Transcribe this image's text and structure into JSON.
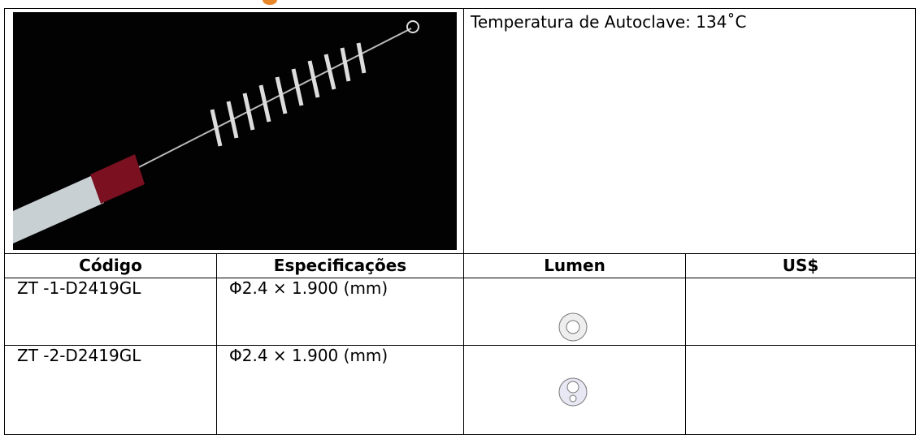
{
  "spec": "Temperatura de Autoclave: 134˚C",
  "table": {
    "headers": [
      "Código",
      "Especificações",
      "Lumen",
      "US$"
    ],
    "rows": [
      [
        "ZT -1-D2419GL",
        "Φ2.4 × 1.900 (mm)"
      ],
      [
        "ZT -2-D2419GL",
        "Φ2.4 × 1.900 (mm)"
      ]
    ]
  }
}
